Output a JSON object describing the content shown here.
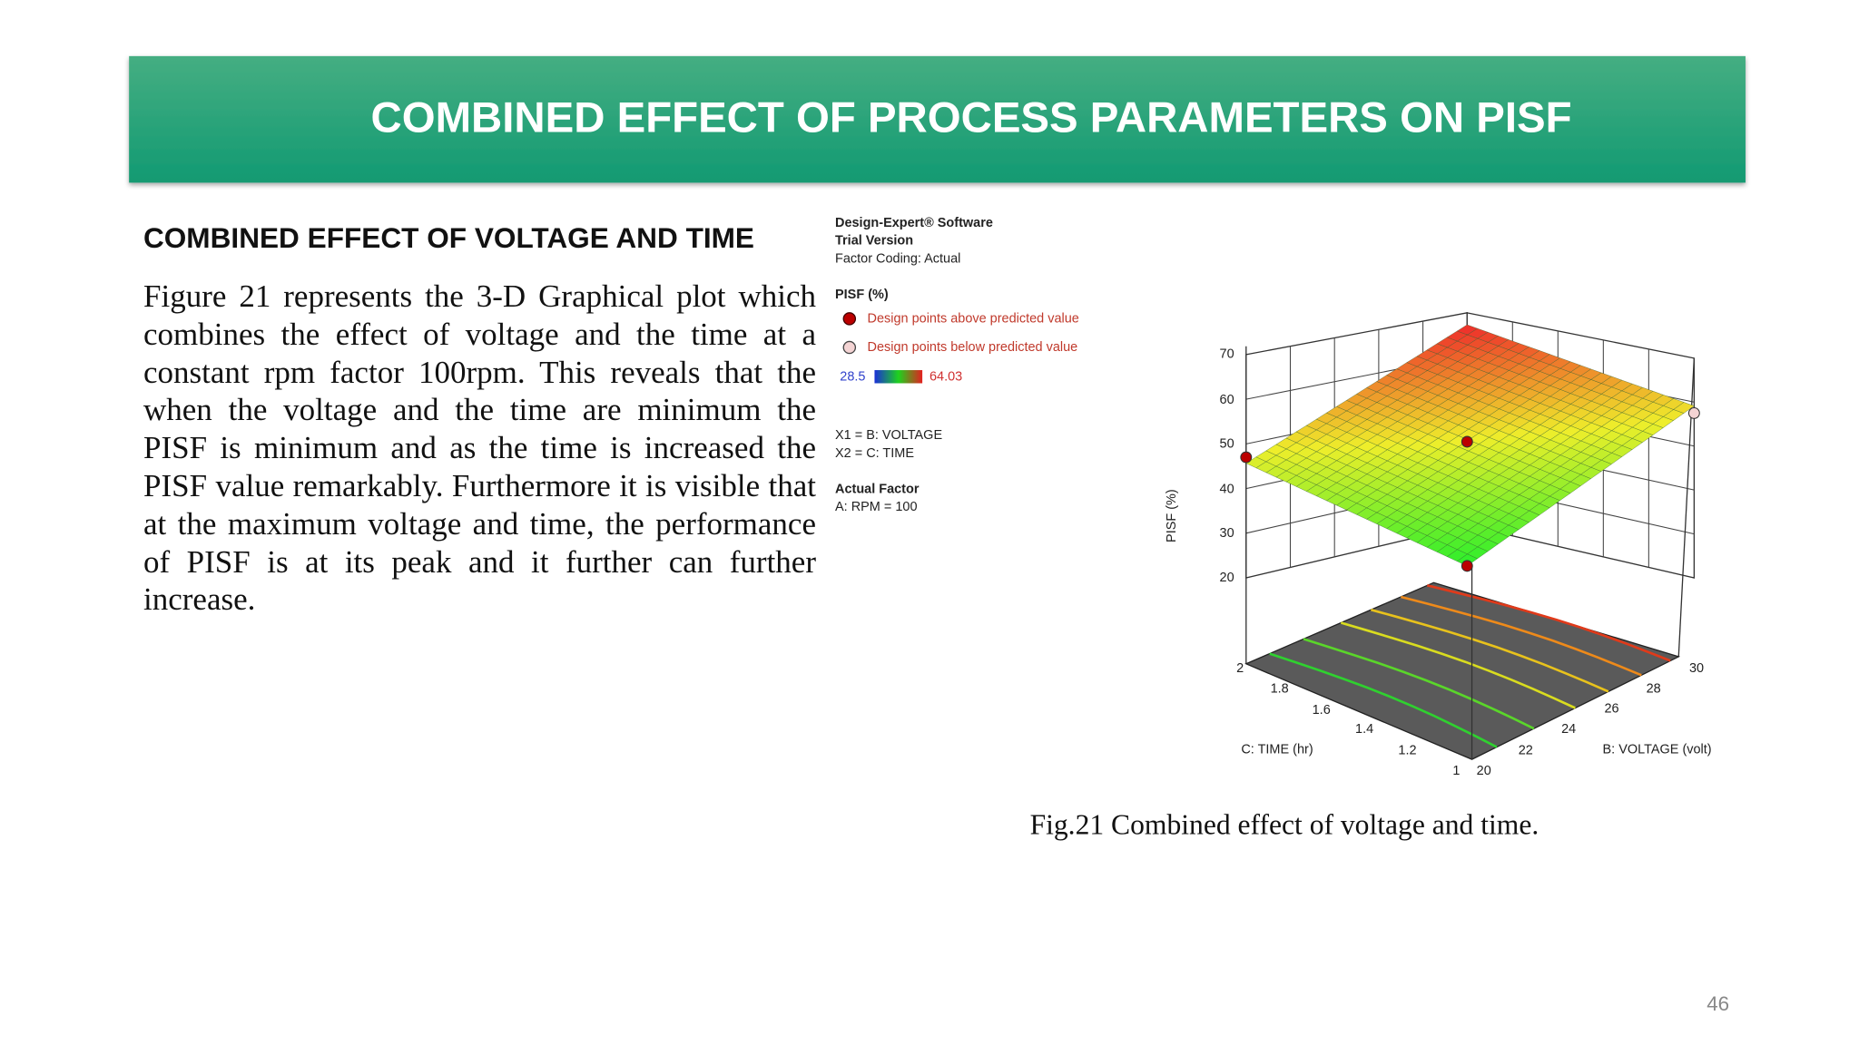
{
  "header": {
    "title": "COMBINED EFFECT OF PROCESS PARAMETERS ON PISF"
  },
  "section": {
    "heading": "COMBINED EFFECT OF VOLTAGE AND TIME",
    "paragraph": "Figure 21 represents the 3-D Graphical plot which combines the effect of voltage and the time at a constant rpm factor 100rpm. This reveals that the when the voltage and the time are minimum the PISF is minimum and as the time is increased the PISF value remarkably. Furthermore it is visible that at the maximum voltage and time, the performance of PISF is at its peak and it further can further increase."
  },
  "figure": {
    "legend": {
      "software": "Design-Expert® Software",
      "version": "Trial Version",
      "coding": "Factor Coding: Actual",
      "response": "PISF (%)",
      "above": "Design points above predicted value",
      "below": "Design points below predicted value",
      "color_min": 28.5,
      "color_max": 64.03,
      "x1": "X1 = B: VOLTAGE",
      "x2": "X2 = C: TIME",
      "actual_factor": "Actual Factor",
      "rpm": "A: RPM = 100"
    },
    "plot": {
      "z_label": "PISF (%)",
      "z_ticks": [
        70,
        60,
        50,
        40,
        30,
        20
      ],
      "time_label": "C: TIME (hr)",
      "time_ticks": [
        2,
        1.8,
        1.6,
        1.4,
        1.2,
        1
      ],
      "voltage_label": "B: VOLTAGE (volt)",
      "voltage_ticks": [
        20,
        22,
        24,
        26,
        28,
        30
      ]
    },
    "caption": "Fig.21 Combined effect of voltage and time."
  },
  "page_number": "46"
}
